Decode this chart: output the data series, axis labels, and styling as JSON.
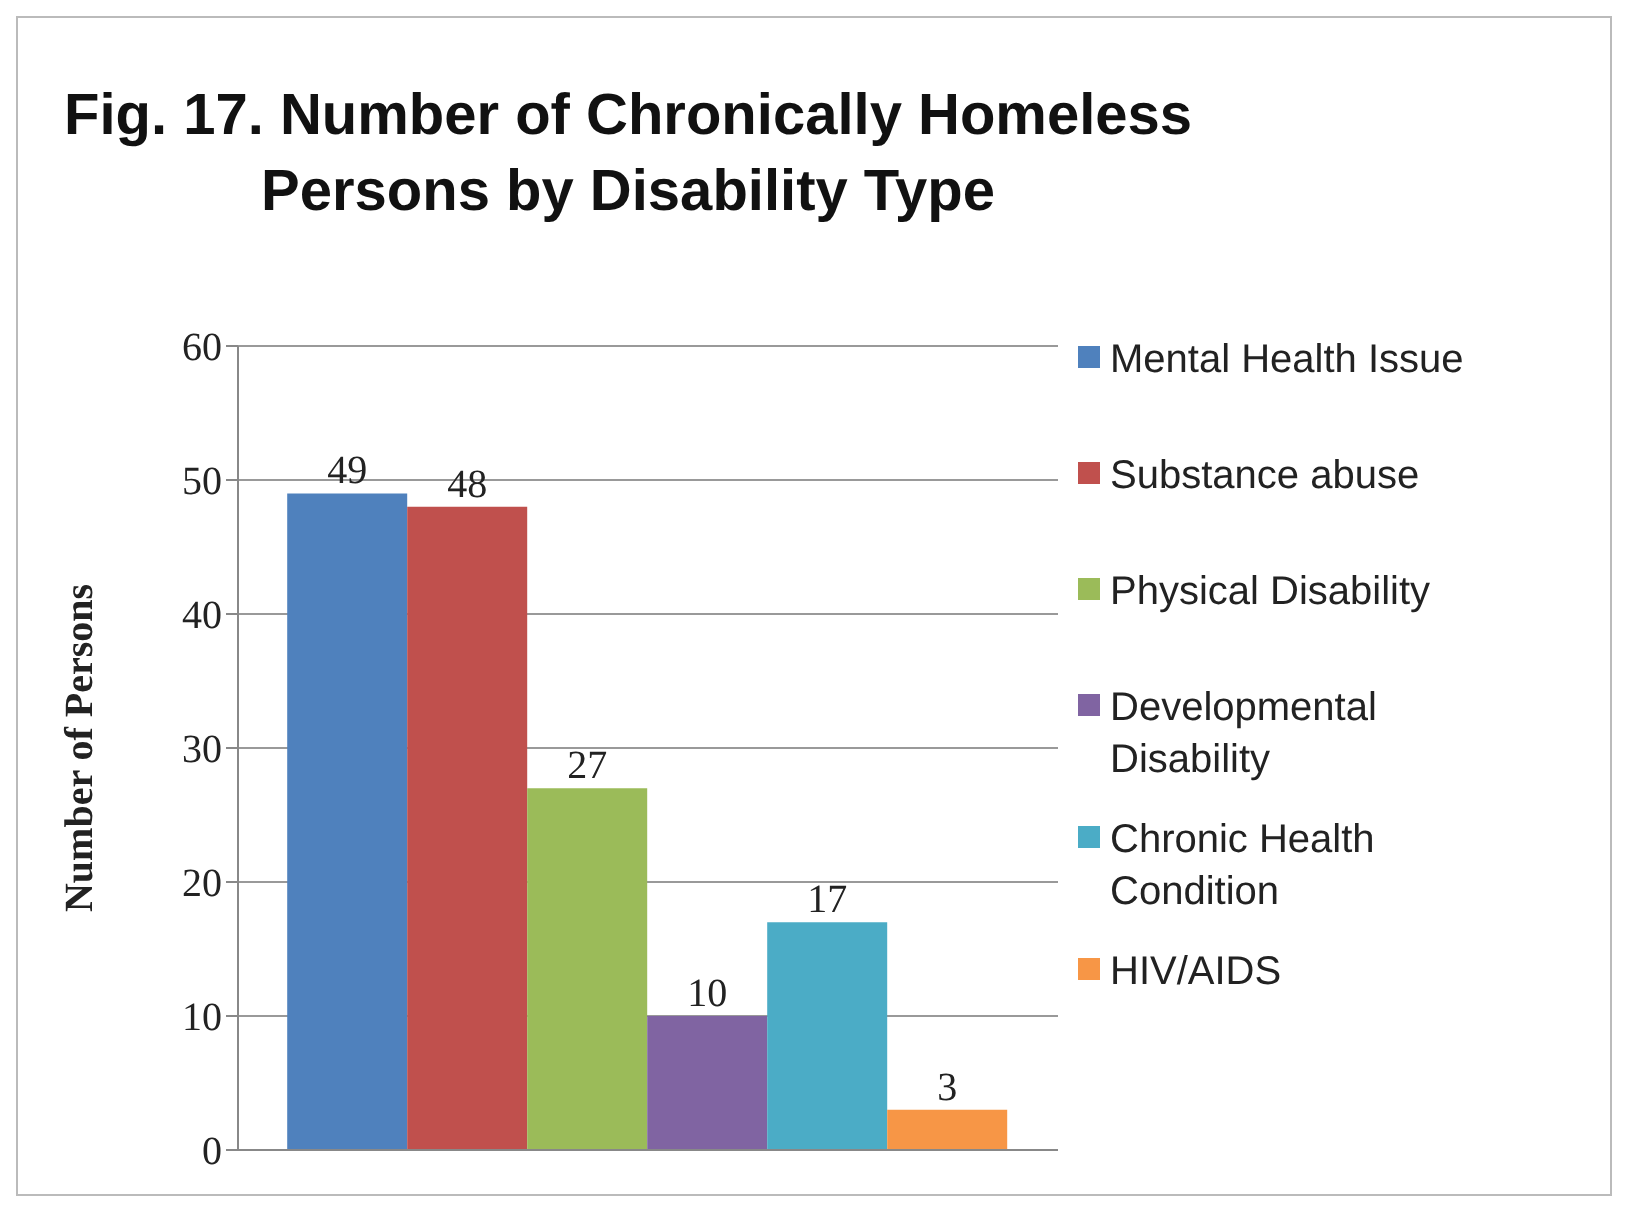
{
  "chart_data": {
    "type": "bar",
    "title": "Fig. 17. Number of Chronically Homeless Persons by Disability Type",
    "ylabel": "Number of Persons",
    "categories": [
      null
    ],
    "series": [
      {
        "name": "Mental Health Issue",
        "color": "#4f81bd",
        "values": [
          49
        ]
      },
      {
        "name": "Substance abuse",
        "color": "#c0504d",
        "values": [
          48
        ]
      },
      {
        "name": "Physical Disability",
        "color": "#9bbb59",
        "values": [
          27
        ]
      },
      {
        "name": "Developmental Disability",
        "color": "#8064a2",
        "values": [
          10
        ]
      },
      {
        "name": "Chronic Health Condition",
        "color": "#4bacc6",
        "values": [
          17
        ]
      },
      {
        "name": "HIV/AIDS",
        "color": "#f79646",
        "values": [
          3
        ]
      }
    ],
    "ylim": [
      0,
      60
    ],
    "yticks": [
      0,
      10,
      20,
      30,
      40,
      50,
      60
    ],
    "grid": "y",
    "legend": "right",
    "data_labels": true
  }
}
